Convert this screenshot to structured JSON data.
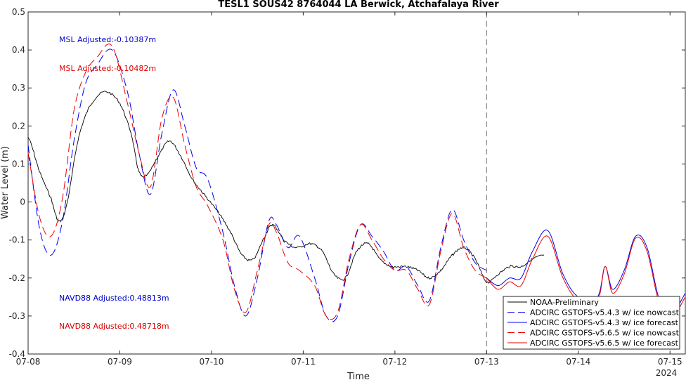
{
  "chart_data": {
    "type": "line",
    "title": "TESL1 SOUS42 8764044 LA Berwick, Atchafalaya River",
    "xlabel": "Time",
    "ylabel": "Water Level (m)",
    "x_unit": "date (July 2024)",
    "xlim": [
      "07-08 00:00",
      "07-15 04:00"
    ],
    "ylim": [
      -0.4,
      0.5
    ],
    "x_tick_labels": [
      "07-08",
      "07-09",
      "07-10",
      "07-11",
      "07-12",
      "07-13",
      "07-14",
      "07-15"
    ],
    "x_year_label": "2024",
    "y_ticks": [
      -0.4,
      -0.3,
      -0.2,
      -0.1,
      0,
      0.1,
      0.2,
      0.3,
      0.4,
      0.5
    ],
    "y_tick_labels": [
      "-0.4",
      "-0.3",
      "-0.2",
      "-0.1",
      "0",
      "0.1",
      "0.2",
      "0.3",
      "0.4",
      "0.5"
    ],
    "grid": false,
    "legend_position": "bottom-right",
    "nowcast_forecast_divider": "07-13 00:00",
    "annotations": [
      {
        "text": "MSL Adjusted:-0.10387m",
        "color": "#0000cc"
      },
      {
        "text": "MSL Adjusted:-0.10482m",
        "color": "#dd0000"
      },
      {
        "text": "NAVD88 Adjusted:0.48813m",
        "color": "#0000cc"
      },
      {
        "text": "NAVD88 Adjusted:0.48718m",
        "color": "#dd0000"
      }
    ],
    "series": [
      {
        "name": "NOAA-Preliminary",
        "color": "#000000",
        "style": "solid",
        "noisy": true,
        "points": [
          [
            "07-08 00:00",
            0.17
          ],
          [
            "07-08 03:00",
            0.08
          ],
          [
            "07-08 06:00",
            0.01
          ],
          [
            "07-08 08:00",
            -0.05
          ],
          [
            "07-08 10:00",
            -0.01
          ],
          [
            "07-08 13:00",
            0.16
          ],
          [
            "07-08 16:00",
            0.25
          ],
          [
            "07-08 20:00",
            0.29
          ],
          [
            "07-09 00:00",
            0.26
          ],
          [
            "07-09 03:00",
            0.18
          ],
          [
            "07-09 05:00",
            0.08
          ],
          [
            "07-09 07:00",
            0.07
          ],
          [
            "07-09 10:00",
            0.12
          ],
          [
            "07-09 13:00",
            0.16
          ],
          [
            "07-09 16:00",
            0.12
          ],
          [
            "07-09 19:00",
            0.06
          ],
          [
            "07-09 22:00",
            0.02
          ],
          [
            "07-10 02:00",
            -0.03
          ],
          [
            "07-10 05:00",
            -0.08
          ],
          [
            "07-10 08:00",
            -0.14
          ],
          [
            "07-10 11:00",
            -0.15
          ],
          [
            "07-10 14:00",
            -0.09
          ],
          [
            "07-10 16:00",
            -0.06
          ],
          [
            "07-10 19:00",
            -0.1
          ],
          [
            "07-10 22:00",
            -0.12
          ],
          [
            "07-11 02:00",
            -0.11
          ],
          [
            "07-11 05:00",
            -0.13
          ],
          [
            "07-11 08:00",
            -0.19
          ],
          [
            "07-11 11:00",
            -0.2
          ],
          [
            "07-11 14:00",
            -0.13
          ],
          [
            "07-11 17:00",
            -0.11
          ],
          [
            "07-11 20:00",
            -0.15
          ],
          [
            "07-11 23:00",
            -0.17
          ],
          [
            "07-12 03:00",
            -0.17
          ],
          [
            "07-12 06:00",
            -0.18
          ],
          [
            "07-12 09:00",
            -0.2
          ],
          [
            "07-12 12:00",
            -0.18
          ],
          [
            "07-12 15:00",
            -0.14
          ],
          [
            "07-12 18:00",
            -0.12
          ],
          [
            "07-12 21:00",
            -0.15
          ],
          [
            "07-13 00:00",
            -0.21
          ],
          [
            "07-13 03:00",
            -0.19
          ],
          [
            "07-13 06:00",
            -0.17
          ],
          [
            "07-13 09:00",
            -0.17
          ],
          [
            "07-13 12:00",
            -0.15
          ],
          [
            "07-13 15:00",
            -0.14
          ]
        ]
      },
      {
        "name": "ADCIRC GSTOFS-v5.4.3 w/ ice nowcast",
        "color": "#0000ee",
        "style": "dashed",
        "points": [
          [
            "07-08 00:00",
            0.15
          ],
          [
            "07-08 03:00",
            -0.07
          ],
          [
            "07-08 06:00",
            -0.14
          ],
          [
            "07-08 09:00",
            -0.05
          ],
          [
            "07-08 12:00",
            0.16
          ],
          [
            "07-08 15:00",
            0.31
          ],
          [
            "07-08 18:00",
            0.36
          ],
          [
            "07-08 22:00",
            0.4
          ],
          [
            "07-09 02:00",
            0.29
          ],
          [
            "07-09 05:00",
            0.13
          ],
          [
            "07-09 08:00",
            0.02
          ],
          [
            "07-09 11:00",
            0.18
          ],
          [
            "07-09 14:00",
            0.295
          ],
          [
            "07-09 17:00",
            0.2
          ],
          [
            "07-09 20:00",
            0.09
          ],
          [
            "07-09 23:00",
            0.06
          ],
          [
            "07-10 03:00",
            -0.08
          ],
          [
            "07-10 06:00",
            -0.22
          ],
          [
            "07-10 09:00",
            -0.3
          ],
          [
            "07-10 12:00",
            -0.2
          ],
          [
            "07-10 15:00",
            -0.05
          ],
          [
            "07-10 17:00",
            -0.06
          ],
          [
            "07-10 20:00",
            -0.12
          ],
          [
            "07-10 23:00",
            -0.09
          ],
          [
            "07-11 03:00",
            -0.2
          ],
          [
            "07-11 06:00",
            -0.3
          ],
          [
            "07-11 09:00",
            -0.3
          ],
          [
            "07-11 12:00",
            -0.16
          ],
          [
            "07-11 15:00",
            -0.06
          ],
          [
            "07-11 18:00",
            -0.09
          ],
          [
            "07-11 21:00",
            -0.13
          ],
          [
            "07-12 00:00",
            -0.18
          ],
          [
            "07-12 03:00",
            -0.17
          ],
          [
            "07-12 06:00",
            -0.22
          ],
          [
            "07-12 09:00",
            -0.26
          ],
          [
            "07-12 12:00",
            -0.12
          ],
          [
            "07-12 15:00",
            -0.02
          ],
          [
            "07-12 18:00",
            -0.1
          ],
          [
            "07-12 21:00",
            -0.16
          ],
          [
            "07-13 00:00",
            -0.18
          ]
        ]
      },
      {
        "name": "ADCIRC GSTOFS-v5.4.3 w/ ice forecast",
        "color": "#0000ee",
        "style": "solid",
        "points": [
          [
            "07-13 00:00",
            -0.2
          ],
          [
            "07-13 03:00",
            -0.22
          ],
          [
            "07-13 06:00",
            -0.2
          ],
          [
            "07-13 09:00",
            -0.2
          ],
          [
            "07-13 12:00",
            -0.13
          ],
          [
            "07-13 16:00",
            -0.075
          ],
          [
            "07-13 20:00",
            -0.19
          ],
          [
            "07-14 00:00",
            -0.25
          ],
          [
            "07-14 05:00",
            -0.25
          ],
          [
            "07-14 07:00",
            -0.17
          ],
          [
            "07-14 09:00",
            -0.23
          ],
          [
            "07-14 12:00",
            -0.18
          ],
          [
            "07-14 15:00",
            -0.09
          ],
          [
            "07-14 18:00",
            -0.12
          ],
          [
            "07-14 21:00",
            -0.25
          ],
          [
            "07-15 00:00",
            -0.3
          ],
          [
            "07-15 04:00",
            -0.24
          ]
        ]
      },
      {
        "name": "ADCIRC GSTOFS-v5.6.5 w/ ice nowcast",
        "color": "#ee0000",
        "style": "dashed",
        "points": [
          [
            "07-08 00:00",
            0.13
          ],
          [
            "07-08 03:00",
            -0.04
          ],
          [
            "07-08 06:00",
            -0.09
          ],
          [
            "07-08 09:00",
            0.01
          ],
          [
            "07-08 12:00",
            0.24
          ],
          [
            "07-08 15:00",
            0.34
          ],
          [
            "07-08 18:00",
            0.38
          ],
          [
            "07-08 22:00",
            0.41
          ],
          [
            "07-09 02:00",
            0.26
          ],
          [
            "07-09 05:00",
            0.13
          ],
          [
            "07-09 08:00",
            0.04
          ],
          [
            "07-09 11:00",
            0.22
          ],
          [
            "07-09 14:00",
            0.275
          ],
          [
            "07-09 17:00",
            0.15
          ],
          [
            "07-09 20:00",
            0.04
          ],
          [
            "07-09 23:00",
            -0.01
          ],
          [
            "07-10 03:00",
            -0.1
          ],
          [
            "07-10 06:00",
            -0.23
          ],
          [
            "07-10 09:00",
            -0.29
          ],
          [
            "07-10 12:00",
            -0.18
          ],
          [
            "07-10 15:00",
            -0.06
          ],
          [
            "07-10 17:00",
            -0.08
          ],
          [
            "07-10 20:00",
            -0.16
          ],
          [
            "07-10 23:00",
            -0.18
          ],
          [
            "07-11 03:00",
            -0.22
          ],
          [
            "07-11 06:00",
            -0.3
          ],
          [
            "07-11 09:00",
            -0.29
          ],
          [
            "07-11 12:00",
            -0.15
          ],
          [
            "07-11 15:00",
            -0.06
          ],
          [
            "07-11 18:00",
            -0.1
          ],
          [
            "07-11 21:00",
            -0.15
          ],
          [
            "07-12 00:00",
            -0.18
          ],
          [
            "07-12 03:00",
            -0.18
          ],
          [
            "07-12 06:00",
            -0.23
          ],
          [
            "07-12 09:00",
            -0.27
          ],
          [
            "07-12 12:00",
            -0.13
          ],
          [
            "07-12 15:00",
            -0.03
          ],
          [
            "07-12 18:00",
            -0.12
          ],
          [
            "07-12 21:00",
            -0.18
          ],
          [
            "07-13 00:00",
            -0.2
          ]
        ]
      },
      {
        "name": "ADCIRC GSTOFS-v5.6.5 w/ ice forecast",
        "color": "#ee0000",
        "style": "solid",
        "points": [
          [
            "07-13 00:00",
            -0.2
          ],
          [
            "07-13 03:00",
            -0.23
          ],
          [
            "07-13 06:00",
            -0.21
          ],
          [
            "07-13 09:00",
            -0.22
          ],
          [
            "07-13 12:00",
            -0.15
          ],
          [
            "07-13 16:00",
            -0.09
          ],
          [
            "07-13 20:00",
            -0.2
          ],
          [
            "07-14 00:00",
            -0.26
          ],
          [
            "07-14 05:00",
            -0.26
          ],
          [
            "07-14 07:00",
            -0.17
          ],
          [
            "07-14 09:00",
            -0.24
          ],
          [
            "07-14 12:00",
            -0.19
          ],
          [
            "07-14 15:00",
            -0.095
          ],
          [
            "07-14 18:00",
            -0.13
          ],
          [
            "07-14 21:00",
            -0.26
          ],
          [
            "07-15 00:00",
            -0.31
          ],
          [
            "07-15 04:00",
            -0.25
          ]
        ]
      }
    ]
  }
}
